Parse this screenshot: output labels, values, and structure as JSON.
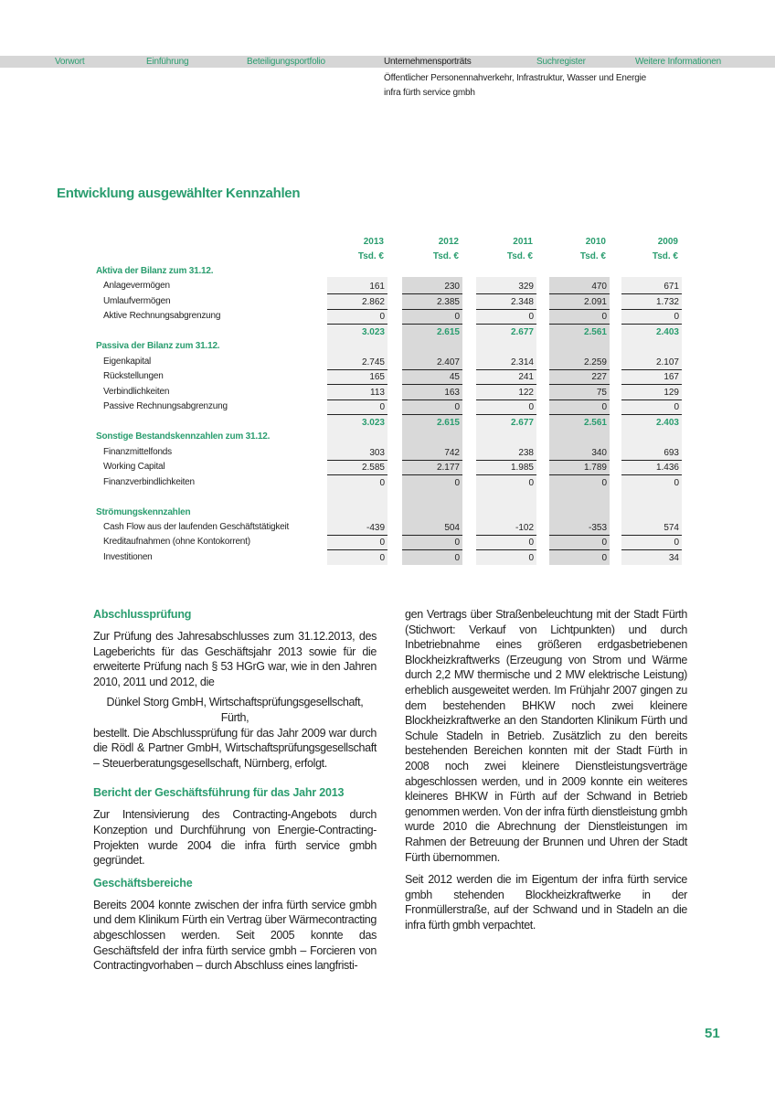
{
  "nav": {
    "items": [
      "Vorwort",
      "Einführung",
      "Beteiligungsportfolio",
      "Unternehmensporträts",
      "Suchregister",
      "Weitere Informationen"
    ],
    "active_index": 3,
    "sub1": "Öffentlicher Personennahverkehr, Infrastruktur, Wasser und Energie",
    "sub2": "infra fürth service gmbh"
  },
  "colors": {
    "accent": "#2a9d6f",
    "nav_bg": "#d6d6d6",
    "col_light": "#efefef",
    "col_dark": "#d9d9d9"
  },
  "title": "Entwicklung ausgewählter Kennzahlen",
  "table": {
    "years": [
      "2013",
      "2012",
      "2011",
      "2010",
      "2009"
    ],
    "unit": "Tsd. €",
    "rows": [
      {
        "type": "section",
        "label": "Aktiva der Bilanz zum 31.12."
      },
      {
        "type": "item",
        "label": "Anlagevermögen",
        "values": [
          "161",
          "230",
          "329",
          "470",
          "671"
        ],
        "line": true
      },
      {
        "type": "item",
        "label": "Umlaufvermögen",
        "values": [
          "2.862",
          "2.385",
          "2.348",
          "2.091",
          "1.732"
        ],
        "line": true
      },
      {
        "type": "item",
        "label": "Aktive Rechnungsabgrenzung",
        "values": [
          "0",
          "0",
          "0",
          "0",
          "0"
        ],
        "line": true
      },
      {
        "type": "total",
        "label": "",
        "values": [
          "3.023",
          "2.615",
          "2.677",
          "2.561",
          "2.403"
        ]
      },
      {
        "type": "section",
        "label": "Passiva der Bilanz zum 31.12."
      },
      {
        "type": "item",
        "label": "Eigenkapital",
        "values": [
          "2.745",
          "2.407",
          "2.314",
          "2.259",
          "2.107"
        ],
        "line": true
      },
      {
        "type": "item",
        "label": "Rückstellungen",
        "values": [
          "165",
          "45",
          "241",
          "227",
          "167"
        ],
        "line": true
      },
      {
        "type": "item",
        "label": "Verbindlichkeiten",
        "values": [
          "113",
          "163",
          "122",
          "75",
          "129"
        ],
        "line": true
      },
      {
        "type": "item",
        "label": "Passive Rechnungsabgrenzung",
        "values": [
          "0",
          "0",
          "0",
          "0",
          "0"
        ],
        "line": true
      },
      {
        "type": "total",
        "label": "",
        "values": [
          "3.023",
          "2.615",
          "2.677",
          "2.561",
          "2.403"
        ]
      },
      {
        "type": "section",
        "label": "Sonstige Bestandskennzahlen zum 31.12."
      },
      {
        "type": "item",
        "label": "Finanzmittelfonds",
        "values": [
          "303",
          "742",
          "238",
          "340",
          "693"
        ],
        "line": true
      },
      {
        "type": "item",
        "label": "Working Capital",
        "values": [
          "2.585",
          "2.177",
          "1.985",
          "1.789",
          "1.436"
        ],
        "line": true
      },
      {
        "type": "item",
        "label": "Finanzverbindlichkeiten",
        "values": [
          "0",
          "0",
          "0",
          "0",
          "0"
        ],
        "line": false
      },
      {
        "type": "blank",
        "label": ""
      },
      {
        "type": "section",
        "label": "Strömungskennzahlen"
      },
      {
        "type": "item",
        "label": "Cash Flow aus der laufenden Geschäftstätigkeit",
        "values": [
          "-439",
          "504",
          "-102",
          "-353",
          "574"
        ],
        "line": true
      },
      {
        "type": "item",
        "label": "Kreditaufnahmen (ohne Kontokorrent)",
        "values": [
          "0",
          "0",
          "0",
          "0",
          "0"
        ],
        "line": true
      },
      {
        "type": "item",
        "label": "Investitionen",
        "values": [
          "0",
          "0",
          "0",
          "0",
          "34"
        ],
        "line": false
      }
    ]
  },
  "text": {
    "h_abschluss": "Abschlussprüfung",
    "p_abschluss1": "Zur Prüfung des Jahresabschlusses zum 31.12.2013, des Lageberichts für das Geschäftsjahr 2013 sowie für die erweiterte Prüfung nach § 53 HGrG war, wie in den Jahren 2010, 2011 und 2012, die",
    "auditor_line1": "Dünkel Storg GmbH, Wirtschaftsprüfungsgesellschaft,",
    "auditor_line2": "Fürth,",
    "p_abschluss2": "bestellt. Die Abschlussprüfung für das Jahr 2009 war durch die Rödl & Partner GmbH, Wirtschaftsprüfungsgesellschaft – Steuerberatungsgesellschaft, Nürnberg, erfolgt.",
    "h_bericht": "Bericht der Geschäftsführung für das Jahr 2013",
    "p_bericht": "Zur Intensivierung des Contracting-Angebots durch Konzeption und Durchführung von Energie-Contracting-Projekten wurde 2004 die infra fürth service gmbh gegründet.",
    "h_bereiche": "Geschäftsbereiche",
    "p_bereiche1": "Bereits 2004 konnte zwischen der infra fürth service gmbh und dem Klinikum Fürth ein Vertrag über Wärmecontracting abgeschlossen werden. Seit 2005 konnte das Geschäftsfeld der infra fürth service gmbh – Forcieren von Contractingvorhaben – durch Abschluss eines langfristi-",
    "p_bereiche2": "gen Vertrags über Straßenbeleuchtung mit der Stadt Fürth (Stichwort: Verkauf von Lichtpunkten) und durch Inbetriebnahme eines größeren erdgasbetriebenen Blockheizkraftwerks (Erzeugung von Strom und Wärme durch 2,2 MW thermische und 2 MW elektrische Leistung) erheblich ausgeweitet werden. Im Frühjahr 2007 gingen zu dem bestehenden BHKW noch zwei kleinere Blockheizkraftwerke an den Standorten Klinikum Fürth und Schule Stadeln in Betrieb. Zusätzlich zu den bereits bestehenden Bereichen konnten mit der Stadt Fürth in 2008 noch zwei kleinere Dienstleistungsverträge abgeschlossen werden, und in 2009 konnte ein weiteres kleineres BHKW in Fürth auf der Schwand in Betrieb genommen werden. Von der infra fürth dienstleistung gmbh wurde 2010 die Abrechnung der Dienstleistungen im Rahmen der Betreuung der Brunnen und Uhren der Stadt Fürth übernommen.",
    "p_bereiche3": "Seit 2012 werden die im Eigentum der infra fürth service gmbh stehenden Blockheizkraftwerke in der Fronmüllerstraße, auf der Schwand und in Stadeln an die infra fürth gmbh verpachtet."
  },
  "page_number": "51"
}
